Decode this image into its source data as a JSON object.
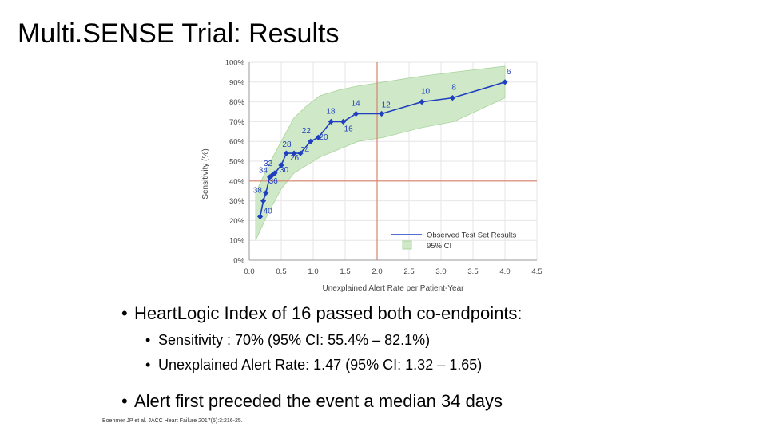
{
  "slide": {
    "title": "Multi.SENSE Trial: Results",
    "bullets": [
      {
        "text": "HeartLogic Index of 16 passed both co-endpoints:",
        "sub": [
          "Sensitivity : 70% (95% CI: 55.4% – 82.1%)",
          "Unexplained Alert Rate: 1.47 (95% CI: 1.32 – 1.65)"
        ]
      },
      {
        "text": "Alert first preceded the event a median 34 days",
        "sub": []
      }
    ],
    "footnote": "Boehmer JP et al. JACC Heart Failure 2017(5):3:216-25."
  },
  "colors": {
    "line": "#1f3fbf",
    "ci_band": "#cfe8c8",
    "ci_edge": "#a8d49c",
    "reference": "#d9826e",
    "grid": "#e6e6e6"
  },
  "chart_data": {
    "type": "line",
    "xlabel": "Unexplained Alert Rate per Patient-Year",
    "ylabel": "Sensitivity (%)",
    "xlim": [
      0,
      4.5
    ],
    "ylim": [
      0,
      100
    ],
    "x_ticks": [
      "0.0",
      "0.5",
      "1.0",
      "1.5",
      "2.0",
      "2.5",
      "3.0",
      "3.5",
      "4.0",
      "4.5"
    ],
    "y_ticks": [
      "0%",
      "10%",
      "20%",
      "30%",
      "40%",
      "50%",
      "60%",
      "70%",
      "80%",
      "90%",
      "100%"
    ],
    "grid": true,
    "legend_position": "bottom-right",
    "reference_lines": {
      "x": 2.0,
      "y": 40
    },
    "series": [
      {
        "name": "Observed Test Set Results",
        "points": [
          {
            "x": 0.17,
            "y": 22,
            "label": "40"
          },
          {
            "x": 0.22,
            "y": 30,
            "label": ""
          },
          {
            "x": 0.26,
            "y": 34,
            "label": "38"
          },
          {
            "x": 0.32,
            "y": 42,
            "label": "36"
          },
          {
            "x": 0.36,
            "y": 43,
            "label": "34"
          },
          {
            "x": 0.4,
            "y": 44,
            "label": "32"
          },
          {
            "x": 0.5,
            "y": 48,
            "label": "30"
          },
          {
            "x": 0.58,
            "y": 54,
            "label": "28"
          },
          {
            "x": 0.7,
            "y": 54,
            "label": "26"
          },
          {
            "x": 0.8,
            "y": 54,
            "label": "24"
          },
          {
            "x": 0.96,
            "y": 60,
            "label": "22"
          },
          {
            "x": 1.08,
            "y": 62,
            "label": "20"
          },
          {
            "x": 1.28,
            "y": 70,
            "label": "18"
          },
          {
            "x": 1.47,
            "y": 70,
            "label": "16"
          },
          {
            "x": 1.67,
            "y": 74,
            "label": "14"
          },
          {
            "x": 2.07,
            "y": 74,
            "label": "12"
          },
          {
            "x": 2.7,
            "y": 80,
            "label": "10"
          },
          {
            "x": 3.18,
            "y": 82,
            "label": "8"
          },
          {
            "x": 4.0,
            "y": 90,
            "label": "6"
          }
        ]
      },
      {
        "name": "95% CI",
        "upper": [
          [
            0.1,
            34
          ],
          [
            0.3,
            48
          ],
          [
            0.5,
            60
          ],
          [
            0.7,
            72
          ],
          [
            0.9,
            78
          ],
          [
            1.1,
            83
          ],
          [
            1.4,
            86
          ],
          [
            1.7,
            88
          ],
          [
            2.1,
            90
          ],
          [
            2.7,
            93
          ],
          [
            3.2,
            95
          ],
          [
            4.0,
            98
          ]
        ],
        "lower": [
          [
            0.1,
            10
          ],
          [
            0.3,
            24
          ],
          [
            0.5,
            36
          ],
          [
            0.7,
            44
          ],
          [
            0.9,
            48
          ],
          [
            1.1,
            52
          ],
          [
            1.4,
            56
          ],
          [
            1.7,
            60
          ],
          [
            2.1,
            62
          ],
          [
            2.7,
            67
          ],
          [
            3.2,
            70
          ],
          [
            4.0,
            82
          ]
        ]
      }
    ]
  }
}
